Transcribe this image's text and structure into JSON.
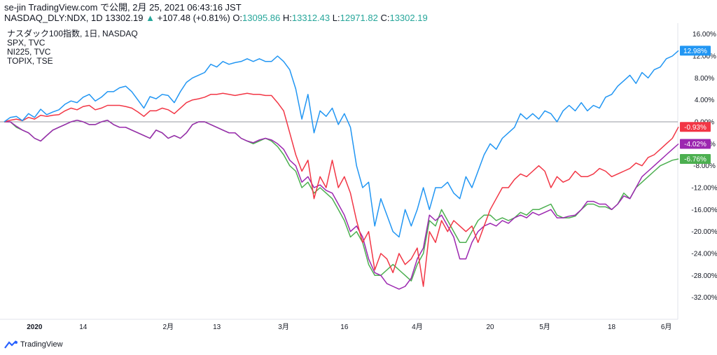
{
  "header": {
    "line1": "se-jin TradingView.com で公開, 2月 25, 2021 06:43:16 JST",
    "symbol": "NASDAQ_DLY:NDX, 1D 13302.19",
    "arrow": "▲",
    "change": "+107.48 (+0.81%)",
    "o_label": "O:",
    "o_val": "13095.86",
    "h_label": "H:",
    "h_val": "13312.43",
    "l_label": "L:",
    "l_val": "12971.82",
    "c_label": "C:",
    "c_val": "13302.19"
  },
  "legend": [
    "ナスダック100指数, 1日, NASDAQ",
    "SPX, TVC",
    "NI225, TVC",
    "TOPIX, TSE"
  ],
  "brand": {
    "name": "TradingView",
    "icon": "tradingview-logo-icon"
  },
  "chart_data": {
    "type": "line",
    "y_unit": "%",
    "ylim": [
      -36,
      18
    ],
    "y_ticks": [
      "16.00%",
      "12.00%",
      "8.00%",
      "4.00%",
      "0.00%",
      "-4.00%",
      "-8.00%",
      "-12.00%",
      "-16.00%",
      "-20.00%",
      "-24.00%",
      "-28.00%",
      "-32.00%"
    ],
    "x_ticks": [
      "2020",
      "14",
      "2月",
      "13",
      "3月",
      "16",
      "4月",
      "20",
      "5月",
      "18",
      "6月"
    ],
    "n_points": 112,
    "series": [
      {
        "name": "ナスダック100指数",
        "color": "#2196f3",
        "last_label": "12.98%",
        "values": [
          0,
          0.8,
          1,
          0.2,
          1.5,
          0.8,
          2.3,
          1.3,
          1.8,
          2.2,
          3.2,
          3.8,
          3.5,
          4.5,
          5,
          3.8,
          4.5,
          5.5,
          5.5,
          6.2,
          6.5,
          5.5,
          4,
          2.5,
          4.6,
          4.2,
          5,
          4.8,
          3.5,
          5.5,
          7.2,
          8,
          8.5,
          9,
          10.5,
          10,
          11,
          10.5,
          10.8,
          11,
          11.5,
          11,
          11.5,
          11,
          11,
          12,
          11,
          9.5,
          6,
          0.5,
          5,
          -2,
          2,
          1,
          2.5,
          -0.5,
          1.5,
          -1,
          -8,
          -12,
          -11,
          -19,
          -14,
          -17,
          -20,
          -21,
          -16,
          -19,
          -16,
          -12,
          -16,
          -12,
          -12,
          -11,
          -13,
          -14,
          -10,
          -12,
          -9,
          -6,
          -4,
          -5,
          -3,
          -2,
          -1,
          1.5,
          0.5,
          1.5,
          0.5,
          2,
          1.5,
          0,
          2,
          3,
          2,
          3.5,
          2,
          3,
          2.5,
          4.5,
          5,
          6.5,
          7.5,
          8.5,
          7,
          9,
          8,
          9.5,
          10,
          11.5,
          12,
          12.98
        ]
      },
      {
        "name": "SPX",
        "color": "#f23645",
        "values": [
          0,
          0.3,
          0.5,
          0.2,
          0.8,
          0.5,
          1.2,
          1,
          1.2,
          1.3,
          2,
          2.5,
          2.2,
          2.8,
          3,
          2.2,
          2.5,
          3,
          3,
          3,
          2.8,
          2.5,
          1.8,
          1,
          2,
          2,
          2.5,
          2.2,
          1.5,
          2.5,
          3.5,
          4,
          4.2,
          4.5,
          5,
          5,
          5.2,
          5,
          4.8,
          5,
          5.2,
          5,
          5,
          4.8,
          4.8,
          3.5,
          2,
          -2,
          -6,
          -9,
          -7,
          -14,
          -10,
          -12,
          -7,
          -12,
          -10,
          -13,
          -18,
          -22,
          -20,
          -27,
          -24,
          -25,
          -27.5,
          -24,
          -26,
          -25,
          -23,
          -30,
          -20,
          -22,
          -18,
          -20,
          -18,
          -19,
          -20,
          -19,
          -22,
          -19,
          -16,
          -14,
          -12,
          -12,
          -10.5,
          -9.5,
          -10,
          -9,
          -8,
          -9,
          -12,
          -10,
          -11,
          -10.5,
          -9,
          -10,
          -10,
          -9.5,
          -8.5,
          -9,
          -10,
          -9.5,
          -9,
          -8.5,
          -7.5,
          -8,
          -6.5,
          -6,
          -5,
          -4,
          -3,
          -0.93
        ]
      },
      {
        "name": "NI225",
        "color": "#4caf50",
        "values": [
          0,
          0,
          -1,
          -1.5,
          -2,
          -3,
          -3.5,
          -2.5,
          -1.5,
          -1,
          -0.5,
          0,
          0.3,
          0,
          -0.5,
          -0.5,
          0,
          0.3,
          -0.5,
          -1,
          -1,
          -1.5,
          -2,
          -2.5,
          -3,
          -1.5,
          -2,
          -3,
          -2.5,
          -3,
          -2,
          -0.5,
          0,
          0,
          -0.5,
          -1,
          -1.5,
          -2,
          -2,
          -3,
          -3.5,
          -4,
          -3.5,
          -3,
          -3.5,
          -4.5,
          -6,
          -8,
          -9,
          -12,
          -11,
          -13,
          -12,
          -13,
          -14,
          -16,
          -18,
          -21,
          -20,
          -22,
          -26,
          -28,
          -28,
          -27,
          -26,
          -27,
          -28,
          -29,
          -26,
          -24,
          -18,
          -19,
          -16,
          -18,
          -20,
          -22,
          -22,
          -20,
          -18,
          -17,
          -17,
          -18,
          -17.5,
          -18,
          -17.5,
          -16.5,
          -17,
          -16,
          -16,
          -15.5,
          -15,
          -17,
          -17.5,
          -17.5,
          -17.2,
          -16,
          -15,
          -15,
          -15.5,
          -15.5,
          -16,
          -15,
          -13,
          -14,
          -12,
          -11,
          -10,
          -9,
          -8,
          -7.5,
          -7,
          -6.76
        ]
      },
      {
        "name": "TOPIX",
        "color": "#9c27b0",
        "values": [
          0,
          0,
          -0.8,
          -1.5,
          -2,
          -3,
          -3.5,
          -2.5,
          -1.5,
          -1,
          -0.5,
          0,
          0.3,
          0,
          -0.5,
          -0.5,
          0,
          0.3,
          -0.5,
          -1,
          -1,
          -1.5,
          -2,
          -2.5,
          -3,
          -1.5,
          -2,
          -3,
          -2.5,
          -3,
          -2,
          -0.5,
          0,
          0,
          -0.5,
          -1,
          -1.5,
          -2,
          -2,
          -3,
          -3.5,
          -3.8,
          -3.3,
          -3,
          -3.3,
          -4,
          -5,
          -7,
          -8,
          -11,
          -10,
          -12,
          -11.5,
          -12.5,
          -13,
          -15,
          -17,
          -20,
          -19,
          -21,
          -25,
          -27.5,
          -28,
          -29.5,
          -30,
          -30.5,
          -30,
          -28.5,
          -25,
          -23,
          -17,
          -18,
          -17,
          -19,
          -21,
          -25,
          -25,
          -22,
          -20,
          -19,
          -18.5,
          -19,
          -18,
          -18.5,
          -17.5,
          -17,
          -17.5,
          -16.5,
          -17,
          -16.5,
          -16,
          -17.5,
          -17.5,
          -17.2,
          -17,
          -16,
          -14.5,
          -14.5,
          -15,
          -15,
          -16,
          -15,
          -13.5,
          -14,
          -12,
          -10,
          -9,
          -8,
          -7,
          -6,
          -5,
          -4.02
        ]
      }
    ]
  }
}
